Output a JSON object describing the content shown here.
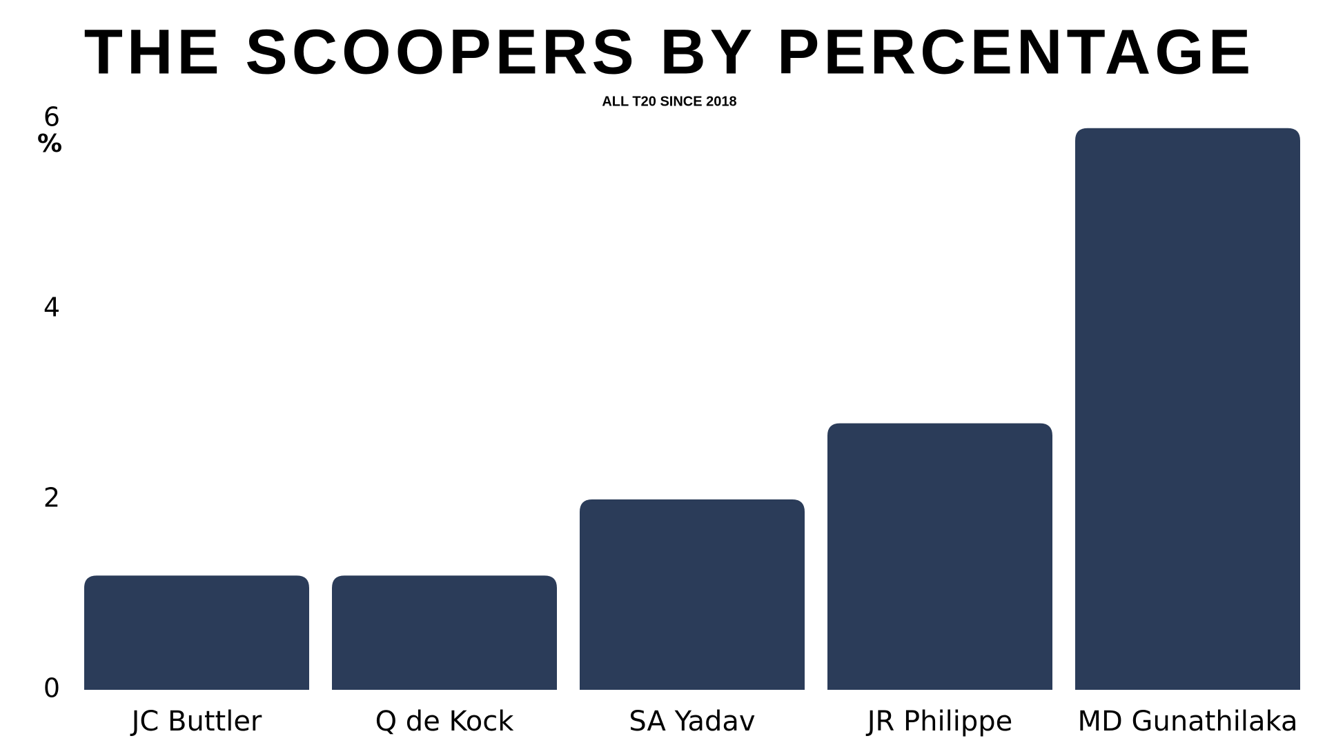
{
  "chart_data": {
    "type": "bar",
    "title": "THE SCOOPERS BY PERCENTAGE",
    "subtitle": "ALL T20 SINCE 2018",
    "y_label": "%",
    "categories": [
      "JC Buttler",
      "Q de Kock",
      "SA Yadav",
      "JR Philippe",
      "MD Gunathilaka"
    ],
    "values": [
      1.2,
      1.2,
      2.0,
      2.8,
      5.9
    ],
    "color": "#2b3c59",
    "ylim": [
      0,
      6
    ],
    "yticks": [
      0,
      2,
      4,
      6
    ],
    "grid": false
  }
}
